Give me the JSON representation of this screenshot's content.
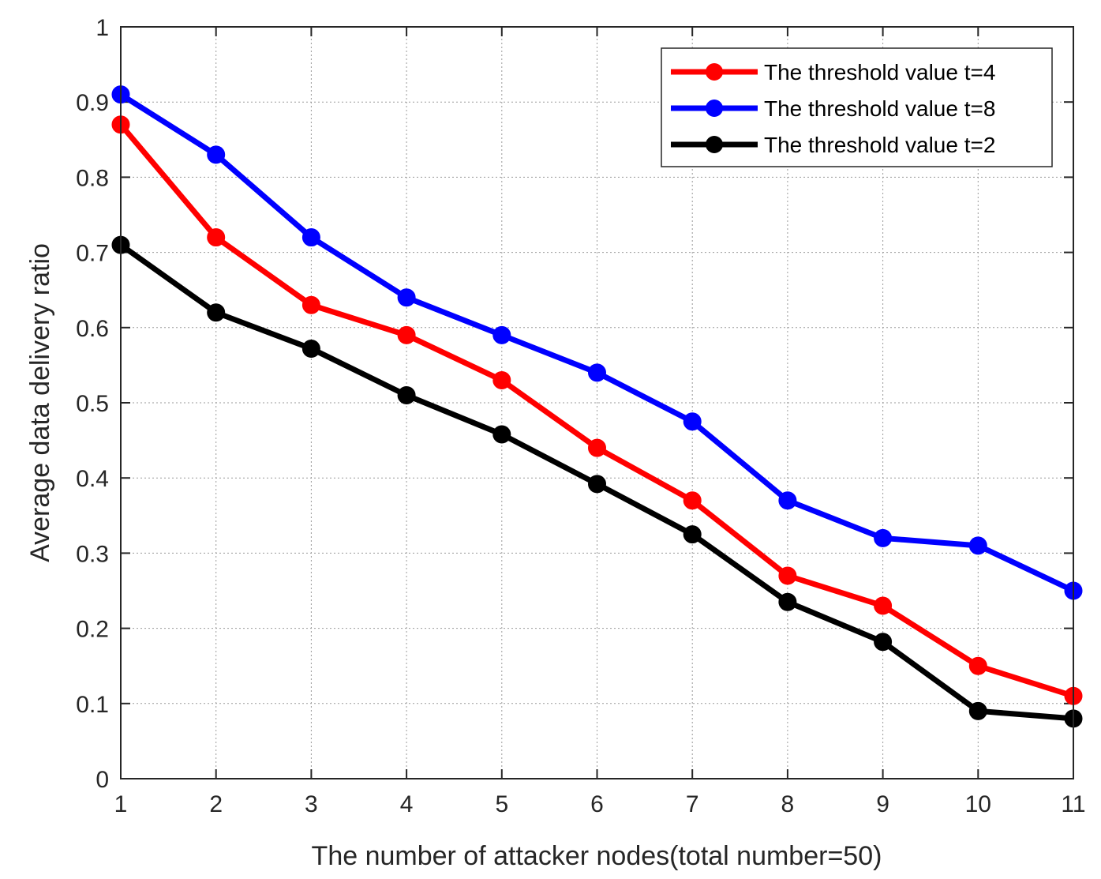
{
  "chart_data": {
    "type": "line",
    "title": "",
    "xlabel": "The  number of attacker nodes(total number=50)",
    "ylabel": "Average data delivery ratio",
    "x": [
      1,
      2,
      3,
      4,
      5,
      6,
      7,
      8,
      9,
      10,
      11
    ],
    "xlim": [
      1,
      11
    ],
    "ylim": [
      0,
      1
    ],
    "xticks": [
      "1",
      "2",
      "3",
      "4",
      "5",
      "6",
      "7",
      "8",
      "9",
      "10",
      "11"
    ],
    "yticks": [
      "0",
      "0.1",
      "0.2",
      "0.3",
      "0.4",
      "0.5",
      "0.6",
      "0.7",
      "0.8",
      "0.9",
      "1"
    ],
    "grid": true,
    "legend_position": "top-right",
    "series": [
      {
        "name": "The threshold value t=4",
        "color": "#ff0000",
        "values": [
          0.87,
          0.72,
          0.63,
          0.59,
          0.53,
          0.44,
          0.37,
          0.27,
          0.23,
          0.15,
          0.11
        ]
      },
      {
        "name": "The threshold value t=8",
        "color": "#0000ff",
        "values": [
          0.91,
          0.83,
          0.72,
          0.64,
          0.59,
          0.54,
          0.475,
          0.37,
          0.32,
          0.31,
          0.25
        ]
      },
      {
        "name": "The threshold value t=2",
        "color": "#000000",
        "values": [
          0.71,
          0.62,
          0.572,
          0.51,
          0.458,
          0.392,
          0.325,
          0.235,
          0.182,
          0.09,
          0.08
        ]
      }
    ]
  }
}
